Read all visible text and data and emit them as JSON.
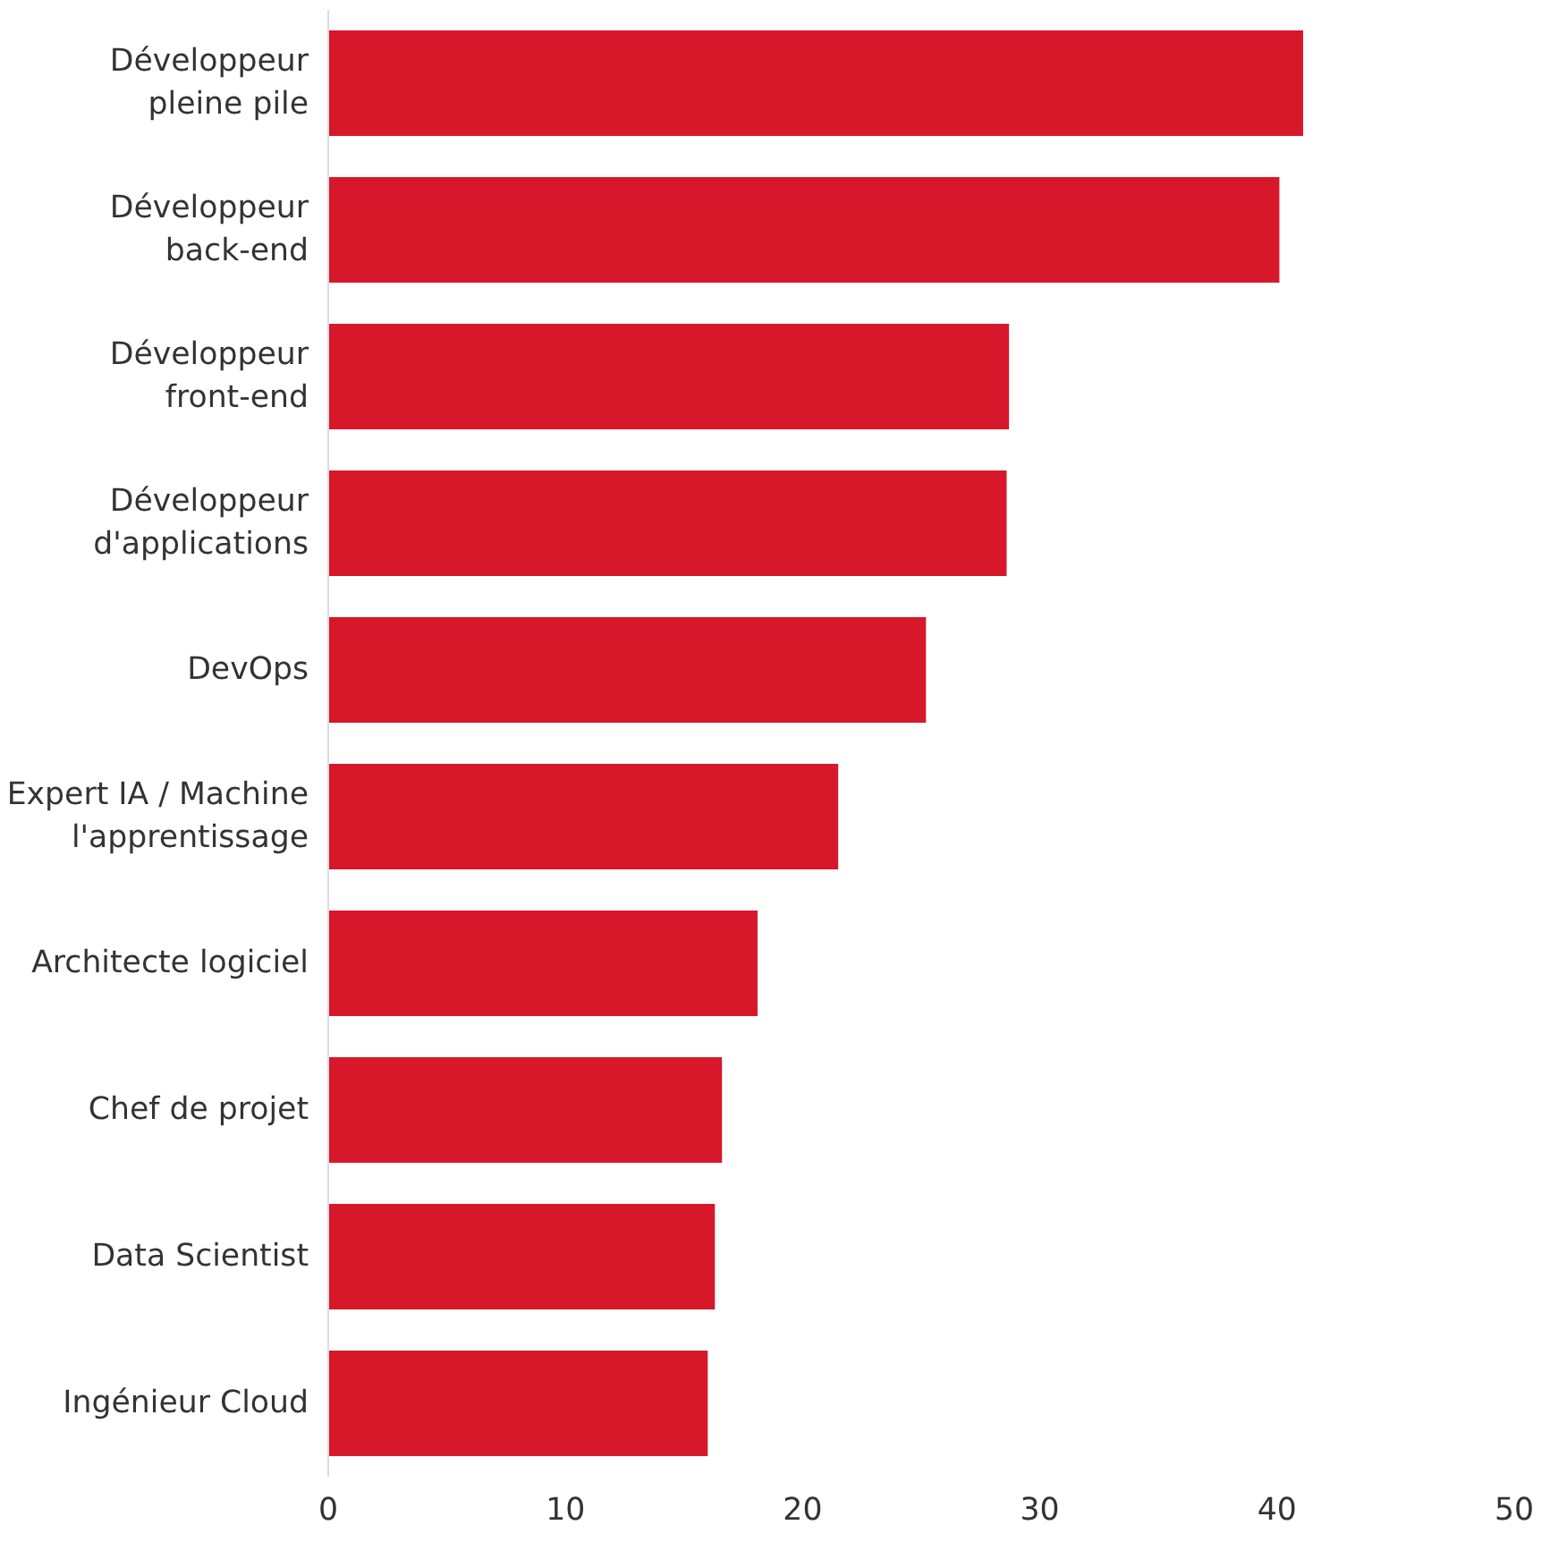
{
  "chart_data": {
    "type": "bar",
    "orientation": "horizontal",
    "categories": [
      "Développeur\npleine pile",
      "Développeur\nback-end",
      "Développeur\nfront-end",
      "Développeur\nd'applications",
      "DevOps",
      "Expert IA / Machine\nl'apprentissage",
      "Architecte logiciel",
      "Chef de projet",
      "Data Scientist",
      "Ingénieur Cloud"
    ],
    "values": [
      41.1,
      40.1,
      28.7,
      28.6,
      25.2,
      21.5,
      18.1,
      16.6,
      16.3,
      16.0
    ],
    "color": "#d7182a",
    "xlim": [
      0,
      50
    ],
    "xticks": [
      0,
      10,
      20,
      30,
      40,
      50
    ]
  }
}
